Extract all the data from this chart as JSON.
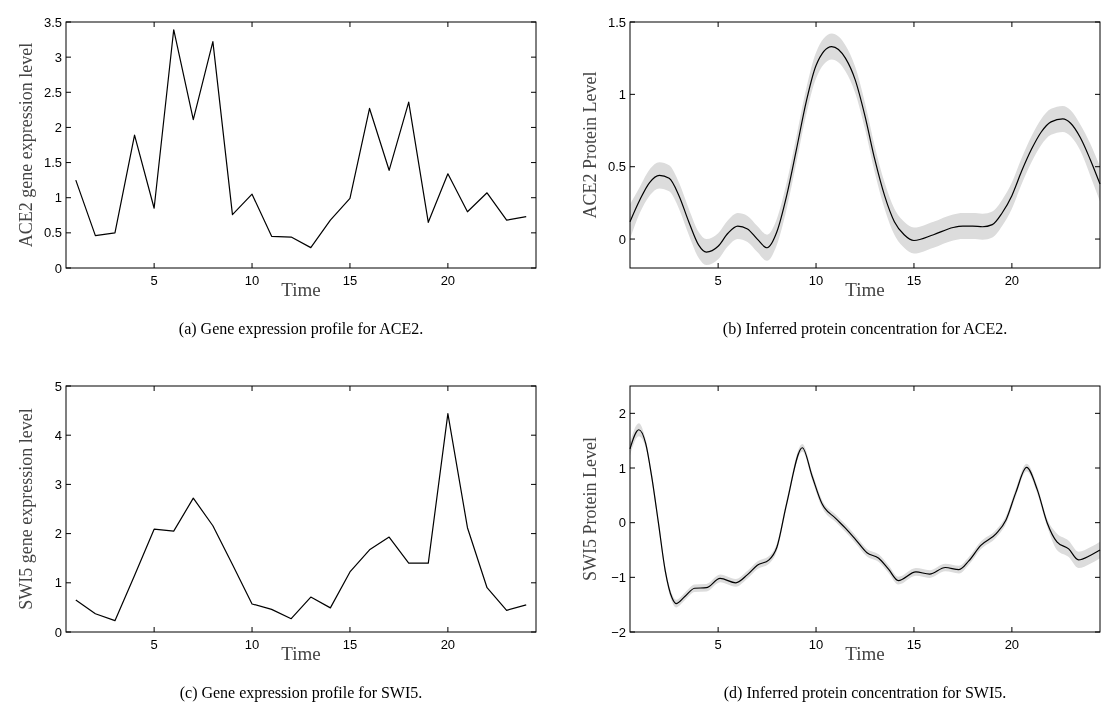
{
  "chart_data": [
    {
      "type": "line",
      "xlabel": "Time",
      "ylabel": "ACE2 gene expression level",
      "xlim": [
        0.5,
        24.5
      ],
      "xticks": [
        5,
        10,
        15,
        20
      ],
      "ylim": [
        0,
        3.5
      ],
      "yticks": [
        0,
        0.5,
        1,
        1.5,
        2,
        2.5,
        3,
        3.5
      ],
      "grid": false,
      "annotations": [
        "(a) Gene expression profile for ACE2."
      ],
      "series": [
        {
          "color": "#000000",
          "x": [
            1,
            2,
            3,
            4,
            5,
            6,
            7,
            8,
            9,
            10,
            11,
            12,
            13,
            14,
            15,
            16,
            17,
            18,
            19,
            20,
            21,
            22,
            23,
            24
          ],
          "values": [
            1.25,
            0.46,
            0.5,
            1.89,
            0.85,
            3.39,
            2.11,
            3.22,
            0.76,
            1.05,
            0.45,
            0.44,
            0.29,
            0.68,
            0.99,
            2.27,
            1.39,
            2.36,
            0.65,
            1.34,
            0.8,
            1.07,
            0.68,
            0.73
          ]
        }
      ]
    },
    {
      "type": "line",
      "xlabel": "Time",
      "ylabel": "ACE2 Protein Level",
      "xlim": [
        0.5,
        24.5
      ],
      "xticks": [
        5,
        10,
        15,
        20
      ],
      "ylim": [
        -0.2,
        1.5
      ],
      "yticks": [
        0,
        0.5,
        1,
        1.5
      ],
      "grid": false,
      "annotations": [
        "(b) Inferred protein concentration for ACE2."
      ],
      "series": [
        {
          "color": "#000000",
          "x": [
            0.5,
            1,
            1.5,
            2,
            2.5,
            3,
            3.5,
            4,
            4.4,
            5,
            5.5,
            6,
            6.5,
            7,
            7.5,
            8,
            8.5,
            9,
            9.5,
            10,
            10.8,
            11.5,
            12,
            12.5,
            13,
            13.5,
            14,
            14.5,
            15,
            16,
            17,
            17.5,
            18,
            18.5,
            19,
            19.5,
            20,
            20.5,
            21,
            21.5,
            22,
            22.6,
            23,
            23.5,
            24,
            24.5
          ],
          "values": [
            0.12,
            0.27,
            0.39,
            0.44,
            0.42,
            0.3,
            0.12,
            -0.04,
            -0.09,
            -0.05,
            0.04,
            0.09,
            0.07,
            0,
            -0.06,
            0.05,
            0.3,
            0.62,
            0.95,
            1.2,
            1.33,
            1.25,
            1.1,
            0.85,
            0.55,
            0.3,
            0.12,
            0.03,
            -0.01,
            0.03,
            0.08,
            0.09,
            0.09,
            0.085,
            0.1,
            0.18,
            0.3,
            0.47,
            0.62,
            0.74,
            0.81,
            0.83,
            0.8,
            0.7,
            0.55,
            0.38
          ],
          "lower": [
            0,
            0.18,
            0.3,
            0.35,
            0.33,
            0.21,
            0.03,
            -0.13,
            -0.18,
            -0.14,
            -0.05,
            0,
            -0.02,
            -0.09,
            -0.15,
            -0.04,
            0.21,
            0.53,
            0.86,
            1.11,
            1.24,
            1.16,
            1.01,
            0.76,
            0.46,
            0.21,
            0.03,
            -0.06,
            -0.1,
            -0.06,
            -0.01,
            0,
            0,
            -0.005,
            0.01,
            0.09,
            0.21,
            0.38,
            0.53,
            0.65,
            0.72,
            0.74,
            0.71,
            0.61,
            0.44,
            0.26
          ],
          "upper": [
            0.24,
            0.36,
            0.48,
            0.53,
            0.51,
            0.39,
            0.21,
            0.05,
            0,
            0.04,
            0.13,
            0.18,
            0.16,
            0.09,
            0.03,
            0.14,
            0.39,
            0.71,
            1.04,
            1.29,
            1.42,
            1.34,
            1.19,
            0.94,
            0.64,
            0.39,
            0.21,
            0.12,
            0.08,
            0.12,
            0.17,
            0.18,
            0.18,
            0.175,
            0.19,
            0.27,
            0.39,
            0.56,
            0.71,
            0.83,
            0.9,
            0.92,
            0.89,
            0.79,
            0.66,
            0.5
          ]
        }
      ]
    },
    {
      "type": "line",
      "xlabel": "Time",
      "ylabel": "SWI5 gene expression level",
      "xlim": [
        0.5,
        24.5
      ],
      "xticks": [
        5,
        10,
        15,
        20
      ],
      "ylim": [
        0,
        5
      ],
      "yticks": [
        0,
        1,
        2,
        3,
        4,
        5
      ],
      "grid": false,
      "annotations": [
        "(c) Gene expression profile for SWI5."
      ],
      "series": [
        {
          "color": "#000000",
          "x": [
            1,
            2,
            3,
            4,
            5,
            6,
            7,
            8,
            9,
            10,
            11,
            12,
            13,
            14,
            15,
            16,
            17,
            18,
            19,
            20,
            21,
            22,
            23,
            24
          ],
          "values": [
            0.65,
            0.37,
            0.23,
            1.15,
            2.09,
            2.05,
            2.72,
            2.16,
            1.37,
            0.57,
            0.46,
            0.27,
            0.71,
            0.49,
            1.22,
            1.67,
            1.93,
            1.4,
            1.4,
            4.44,
            2.12,
            0.9,
            0.44,
            0.55
          ]
        }
      ]
    },
    {
      "type": "line",
      "xlabel": "Time",
      "ylabel": "SWI5 Protein Level",
      "xlim": [
        0.5,
        24.5
      ],
      "xticks": [
        5,
        10,
        15,
        20
      ],
      "ylim": [
        -2,
        2.5
      ],
      "yticks": [
        {
          "value": -2,
          "label": "−2"
        },
        {
          "value": -1,
          "label": "−1"
        },
        0,
        1,
        2
      ],
      "grid": false,
      "annotations": [
        "(d) Inferred protein concentration for SWI5."
      ],
      "series": [
        {
          "color": "#000000",
          "x": [
            0.5,
            0.95,
            1.3,
            1.6,
            1.95,
            2.3,
            2.65,
            2.85,
            3.3,
            3.8,
            4.4,
            5.1,
            5.9,
            6.5,
            7,
            7.6,
            8,
            8.5,
            9.3,
            9.8,
            10.3,
            11,
            11.5,
            12,
            12.6,
            13.2,
            13.7,
            14.2,
            15.1,
            15.8,
            16.6,
            17.3,
            17.8,
            18.4,
            19.2,
            19.7,
            20.2,
            20.75,
            21.3,
            21.8,
            22.3,
            22.9,
            23.4,
            24,
            24.5
          ],
          "values": [
            1.35,
            1.7,
            1.45,
            0.86,
            0,
            -0.88,
            -1.38,
            -1.48,
            -1.35,
            -1.2,
            -1.19,
            -1.02,
            -1.1,
            -0.95,
            -0.78,
            -0.68,
            -0.45,
            0.35,
            1.37,
            0.85,
            0.35,
            0.08,
            -0.1,
            -0.3,
            -0.55,
            -0.65,
            -0.85,
            -1.06,
            -0.9,
            -0.94,
            -0.82,
            -0.86,
            -0.7,
            -0.42,
            -0.2,
            0.05,
            0.55,
            1.01,
            0.6,
            0,
            -0.35,
            -0.48,
            -0.68,
            -0.6,
            -0.5
          ],
          "lower": [
            1.23,
            1.58,
            1.38,
            0.79,
            -0.07,
            -0.95,
            -1.45,
            -1.55,
            -1.42,
            -1.27,
            -1.26,
            -1.09,
            -1.17,
            -1.02,
            -0.85,
            -0.75,
            -0.52,
            0.28,
            1.3,
            0.78,
            0.28,
            0.01,
            -0.17,
            -0.37,
            -0.62,
            -0.72,
            -0.92,
            -1.13,
            -0.97,
            -1.01,
            -0.89,
            -0.93,
            -0.77,
            -0.49,
            -0.27,
            -0.02,
            0.48,
            0.94,
            0.53,
            -0.07,
            -0.5,
            -0.63,
            -0.83,
            -0.75,
            -0.65
          ],
          "upper": [
            1.47,
            1.82,
            1.52,
            0.93,
            0.07,
            -0.81,
            -1.31,
            -1.41,
            -1.28,
            -1.13,
            -1.12,
            -0.95,
            -1.03,
            -0.88,
            -0.71,
            -0.61,
            -0.38,
            0.42,
            1.44,
            0.92,
            0.42,
            0.15,
            -0.03,
            -0.23,
            -0.48,
            -0.58,
            -0.78,
            -0.99,
            -0.83,
            -0.87,
            -0.75,
            -0.79,
            -0.63,
            -0.35,
            -0.13,
            0.12,
            0.62,
            1.08,
            0.67,
            0.07,
            -0.2,
            -0.33,
            -0.53,
            -0.45,
            -0.35
          ]
        }
      ]
    }
  ]
}
